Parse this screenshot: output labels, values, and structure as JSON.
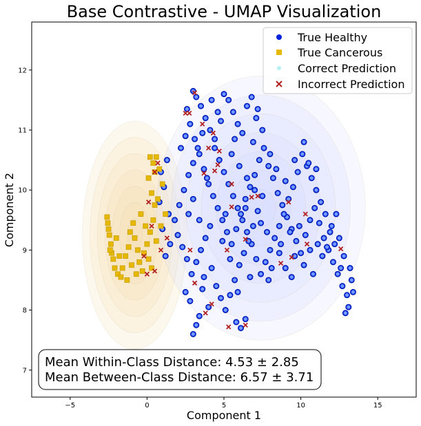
{
  "chart_data": {
    "type": "scatter",
    "title": "Base Contrastive - UMAP Visualization",
    "xlabel": "Component 1",
    "ylabel": "Component 2",
    "xlim": [
      -7.5,
      17.5
    ],
    "ylim": [
      6.55,
      12.8
    ],
    "xticks": [
      -5,
      0,
      5,
      10,
      15
    ],
    "yticks": [
      7,
      8,
      9,
      10,
      11,
      12
    ],
    "legend_position": "upper right",
    "legend": [
      {
        "label": "True Healthy",
        "marker": "circle",
        "color": "#0022dd"
      },
      {
        "label": "True Cancerous",
        "marker": "square",
        "color": "#e6b800"
      },
      {
        "label": "Correct Prediction",
        "marker": "circle",
        "color": "#b6f0f0"
      },
      {
        "label": "Incorrect Prediction",
        "marker": "x",
        "color": "#b22222"
      }
    ],
    "annotation": {
      "line1": "Mean Within-Class Distance: 4.53 ± 2.85",
      "line2": "Mean Between-Class Distance: 6.57 ± 3.71"
    },
    "series": [
      {
        "name": "True Healthy",
        "points": [
          [
            3.0,
            11.65
          ],
          [
            3.2,
            11.55
          ],
          [
            3.5,
            11.4
          ],
          [
            3.8,
            11.2
          ],
          [
            4.1,
            11.0
          ],
          [
            4.4,
            10.85
          ],
          [
            4.6,
            11.3
          ],
          [
            5.0,
            11.6
          ],
          [
            5.3,
            11.5
          ],
          [
            5.6,
            11.3
          ],
          [
            5.9,
            11.1
          ],
          [
            6.2,
            10.95
          ],
          [
            6.5,
            11.4
          ],
          [
            6.8,
            11.55
          ],
          [
            7.1,
            11.2
          ],
          [
            7.5,
            11.0
          ],
          [
            2.6,
            11.35
          ],
          [
            2.8,
            11.1
          ],
          [
            3.1,
            10.85
          ],
          [
            3.4,
            10.6
          ],
          [
            3.7,
            10.35
          ],
          [
            4.0,
            10.1
          ],
          [
            4.3,
            9.9
          ],
          [
            4.6,
            9.7
          ],
          [
            4.9,
            9.5
          ],
          [
            5.2,
            9.3
          ],
          [
            5.5,
            9.1
          ],
          [
            5.8,
            9.35
          ],
          [
            6.1,
            9.6
          ],
          [
            6.4,
            9.85
          ],
          [
            6.7,
            10.05
          ],
          [
            7.0,
            10.25
          ],
          [
            7.3,
            10.5
          ],
          [
            7.6,
            10.7
          ],
          [
            7.9,
            10.4
          ],
          [
            8.2,
            10.2
          ],
          [
            8.5,
            9.95
          ],
          [
            8.8,
            9.75
          ],
          [
            9.1,
            9.55
          ],
          [
            9.4,
            9.35
          ],
          [
            9.7,
            9.15
          ],
          [
            10.0,
            8.95
          ],
          [
            10.3,
            9.25
          ],
          [
            10.6,
            9.5
          ],
          [
            10.9,
            9.7
          ],
          [
            11.2,
            9.45
          ],
          [
            11.5,
            9.2
          ],
          [
            11.8,
            9.0
          ],
          [
            12.1,
            8.8
          ],
          [
            12.4,
            8.6
          ],
          [
            12.7,
            8.4
          ],
          [
            13.0,
            8.25
          ],
          [
            13.3,
            8.5
          ],
          [
            13.1,
            8.05
          ],
          [
            12.9,
            7.95
          ],
          [
            12.6,
            8.7
          ],
          [
            12.2,
            9.1
          ],
          [
            11.9,
            9.3
          ],
          [
            11.6,
            9.6
          ],
          [
            11.3,
            9.8
          ],
          [
            11.0,
            10.0
          ],
          [
            10.7,
            10.2
          ],
          [
            10.4,
            10.4
          ],
          [
            10.1,
            10.6
          ],
          [
            9.8,
            10.3
          ],
          [
            9.5,
            10.05
          ],
          [
            9.2,
            9.85
          ],
          [
            8.9,
            9.6
          ],
          [
            8.6,
            9.4
          ],
          [
            8.3,
            9.2
          ],
          [
            8.0,
            9.0
          ],
          [
            7.7,
            8.8
          ],
          [
            7.4,
            8.6
          ],
          [
            7.1,
            8.85
          ],
          [
            6.8,
            9.1
          ],
          [
            6.5,
            9.3
          ],
          [
            6.2,
            9.5
          ],
          [
            5.9,
            9.7
          ],
          [
            5.6,
            9.9
          ],
          [
            5.3,
            10.1
          ],
          [
            5.0,
            10.3
          ],
          [
            4.7,
            10.5
          ],
          [
            4.4,
            10.7
          ],
          [
            4.1,
            9.4
          ],
          [
            3.8,
            9.2
          ],
          [
            3.5,
            9.0
          ],
          [
            3.2,
            8.8
          ],
          [
            2.9,
            8.6
          ],
          [
            2.6,
            8.85
          ],
          [
            2.3,
            9.05
          ],
          [
            2.0,
            9.25
          ],
          [
            1.8,
            9.5
          ],
          [
            2.1,
            9.75
          ],
          [
            2.4,
            10.0
          ],
          [
            2.7,
            10.25
          ],
          [
            3.0,
            10.45
          ],
          [
            3.3,
            10.7
          ],
          [
            3.6,
            10.95
          ],
          [
            4.5,
            8.4
          ],
          [
            4.8,
            8.2
          ],
          [
            5.1,
            8.0
          ],
          [
            5.4,
            8.25
          ],
          [
            5.7,
            8.5
          ],
          [
            6.0,
            8.75
          ],
          [
            6.3,
            8.95
          ],
          [
            6.6,
            9.15
          ],
          [
            6.9,
            9.4
          ],
          [
            7.2,
            9.65
          ],
          [
            7.5,
            9.9
          ],
          [
            3.0,
            7.6
          ],
          [
            3.2,
            7.75
          ],
          [
            3.4,
            7.9
          ],
          [
            5.8,
            7.8
          ],
          [
            6.1,
            7.7
          ],
          [
            6.4,
            7.85
          ],
          [
            2.5,
            8.3
          ],
          [
            2.8,
            8.15
          ],
          [
            3.6,
            8.35
          ],
          [
            4.0,
            8.05
          ],
          [
            1.2,
            8.9
          ],
          [
            1.5,
            9.1
          ],
          [
            1.0,
            9.35
          ],
          [
            1.4,
            9.6
          ],
          [
            0.8,
            9.8
          ],
          [
            1.1,
            10.05
          ],
          [
            0.9,
            10.3
          ],
          [
            1.3,
            10.5
          ],
          [
            2.2,
            10.7
          ],
          [
            2.5,
            10.9
          ],
          [
            5.5,
            10.6
          ],
          [
            6.0,
            10.4
          ],
          [
            6.5,
            10.2
          ],
          [
            7.0,
            10.0
          ],
          [
            8.0,
            10.6
          ],
          [
            8.4,
            10.35
          ],
          [
            9.0,
            10.15
          ],
          [
            9.6,
            10.5
          ],
          [
            10.2,
            10.8
          ],
          [
            10.5,
            10.45
          ],
          [
            11.1,
            9.1
          ],
          [
            11.4,
            8.9
          ],
          [
            12.0,
            9.4
          ],
          [
            12.5,
            9.2
          ],
          [
            13.2,
            8.7
          ],
          [
            10.8,
            8.6
          ],
          [
            10.2,
            8.75
          ],
          [
            9.6,
            8.9
          ],
          [
            9.0,
            8.7
          ],
          [
            8.6,
            8.95
          ],
          [
            7.9,
            8.5
          ],
          [
            4.2,
            11.5
          ],
          [
            4.8,
            11.15
          ],
          [
            5.7,
            10.85
          ],
          [
            6.9,
            10.8
          ],
          [
            7.2,
            11.35
          ],
          [
            3.9,
            10.2
          ],
          [
            4.9,
            9.15
          ],
          [
            5.4,
            8.85
          ],
          [
            6.7,
            8.55
          ],
          [
            7.8,
            9.3
          ],
          [
            8.7,
            9.1
          ],
          [
            9.3,
            9.3
          ],
          [
            10.6,
            9.0
          ],
          [
            11.7,
            9.05
          ],
          [
            12.3,
            9.6
          ],
          [
            11.0,
            10.35
          ],
          [
            9.9,
            9.4
          ],
          [
            7.4,
            9.45
          ],
          [
            6.4,
            9.7
          ],
          [
            5.1,
            9.6
          ],
          [
            3.4,
            9.5
          ],
          [
            2.7,
            9.6
          ],
          [
            3.0,
            9.85
          ],
          [
            4.2,
            8.7
          ],
          [
            3.7,
            8.55
          ],
          [
            5.9,
            8.3
          ],
          [
            8.1,
            8.7
          ],
          [
            9.4,
            8.55
          ],
          [
            12.8,
            8.9
          ],
          [
            13.4,
            8.3
          ]
        ]
      },
      {
        "name": "True Cancerous",
        "points": [
          [
            -2.6,
            9.55
          ],
          [
            -2.55,
            9.45
          ],
          [
            -2.5,
            9.35
          ],
          [
            -2.45,
            9.25
          ],
          [
            -2.35,
            9.1
          ],
          [
            -2.3,
            8.95
          ],
          [
            -2.2,
            8.85
          ],
          [
            -2.1,
            8.7
          ],
          [
            -1.9,
            8.6
          ],
          [
            -1.7,
            8.55
          ],
          [
            -1.6,
            8.7
          ],
          [
            -1.4,
            8.9
          ],
          [
            -1.2,
            9.05
          ],
          [
            -1.1,
            9.3
          ],
          [
            -0.9,
            9.45
          ],
          [
            -0.8,
            9.2
          ],
          [
            -0.6,
            9.0
          ],
          [
            -0.5,
            8.8
          ],
          [
            -0.3,
            8.65
          ],
          [
            -0.2,
            8.95
          ],
          [
            0.0,
            9.1
          ],
          [
            0.1,
            8.85
          ],
          [
            0.3,
            8.7
          ],
          [
            0.2,
            9.3
          ],
          [
            0.4,
            9.5
          ],
          [
            0.5,
            9.75
          ],
          [
            0.3,
            9.95
          ],
          [
            0.1,
            10.2
          ],
          [
            0.4,
            10.45
          ],
          [
            0.6,
            10.55
          ],
          [
            0.8,
            10.35
          ],
          [
            1.0,
            10.1
          ],
          [
            0.7,
            9.85
          ],
          [
            1.2,
            9.6
          ],
          [
            0.9,
            9.4
          ],
          [
            -0.4,
            9.6
          ],
          [
            -1.0,
            8.75
          ],
          [
            -1.8,
            8.9
          ],
          [
            -2.0,
            9.2
          ],
          [
            -0.7,
            8.6
          ],
          [
            0.6,
            9.15
          ],
          [
            -0.1,
            9.4
          ],
          [
            0.2,
            10.55
          ],
          [
            0.5,
            10.3
          ],
          [
            -1.3,
            8.5
          ],
          [
            -2.4,
            9.0
          ]
        ]
      }
    ],
    "correct_predictions": "overlay on all correctly classified points",
    "incorrect_predictions": [
      [
        3.1,
        11.62
      ],
      [
        3.6,
        11.1
      ],
      [
        4.3,
        10.95
      ],
      [
        4.0,
        10.7
      ],
      [
        2.5,
        11.28
      ],
      [
        2.75,
        11.28
      ],
      [
        3.7,
        10.28
      ],
      [
        4.6,
        10.42
      ],
      [
        4.4,
        10.32
      ],
      [
        4.7,
        10.65
      ],
      [
        5.5,
        9.72
      ],
      [
        6.8,
        9.88
      ],
      [
        7.2,
        9.9
      ],
      [
        9.2,
        9.8
      ],
      [
        10.3,
        9.6
      ],
      [
        6.4,
        9.18
      ],
      [
        5.2,
        9.0
      ],
      [
        2.8,
        9.0
      ],
      [
        3.1,
        8.45
      ],
      [
        3.8,
        7.95
      ],
      [
        4.2,
        8.1
      ],
      [
        5.3,
        7.72
      ],
      [
        6.4,
        7.75
      ],
      [
        8.7,
        8.78
      ],
      [
        9.4,
        8.88
      ],
      [
        10.4,
        9.1
      ],
      [
        12.6,
        9.02
      ],
      [
        5.5,
        10.1
      ],
      [
        0.7,
        10.45
      ],
      [
        0.5,
        10.3
      ],
      [
        0.1,
        9.8
      ],
      [
        0.3,
        9.4
      ],
      [
        -0.2,
        8.9
      ],
      [
        0.5,
        8.65
      ],
      [
        1.3,
        9.2
      ],
      [
        0.9,
        9.0
      ],
      [
        0.0,
        8.6
      ]
    ],
    "density_contours": [
      {
        "class": "True Cancerous",
        "color": "#f5deb3",
        "center": [
          -0.8,
          9.25
        ],
        "radii": [
          3.4,
          1.9
        ]
      },
      {
        "class": "True Healthy",
        "color": "#d8dcff",
        "center": [
          7.4,
          9.7
        ],
        "radii": [
          6.8,
          2.2
        ]
      }
    ]
  }
}
